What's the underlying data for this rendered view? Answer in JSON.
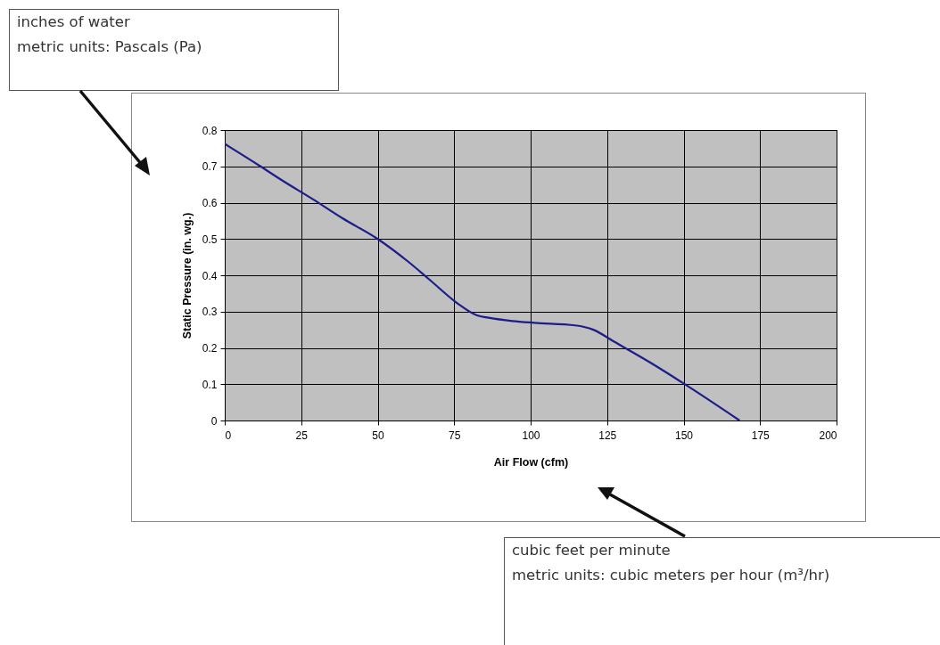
{
  "chart_data": {
    "type": "line",
    "xlabel": "Air Flow (cfm)",
    "ylabel": "Static Pressure (in. wg.)",
    "x": [
      0,
      11.7,
      19,
      28.7,
      38.5,
      50,
      59.9,
      66.8,
      76.5,
      82.3,
      86.3,
      94,
      101.3,
      114.6,
      120.5,
      127.3,
      139,
      150,
      168.3
    ],
    "series": [
      {
        "color": "#1c1c8a",
        "values": [
          0.762,
          0.7,
          0.66,
          0.61,
          0.557,
          0.5,
          0.438,
          0.389,
          0.32,
          0.29,
          0.283,
          0.274,
          0.269,
          0.262,
          0.25,
          0.217,
          0.16,
          0.102,
          0
        ]
      }
    ],
    "xlim": [
      0,
      200
    ],
    "xticks": [
      0,
      25,
      50,
      75,
      100,
      125,
      150,
      175,
      200
    ],
    "ylim": [
      0,
      0.8
    ],
    "yticks": [
      0,
      0.1,
      0.2,
      0.3,
      0.4,
      0.5,
      0.6,
      0.7,
      0.8
    ],
    "grid": true,
    "marker": "none",
    "line_style": "solid",
    "annotations": [
      "inches of water",
      "metric units: Pascals (Pa)",
      "cubic feet per minute",
      "metric units: cubic meters per hour (m³/hr)"
    ]
  }
}
